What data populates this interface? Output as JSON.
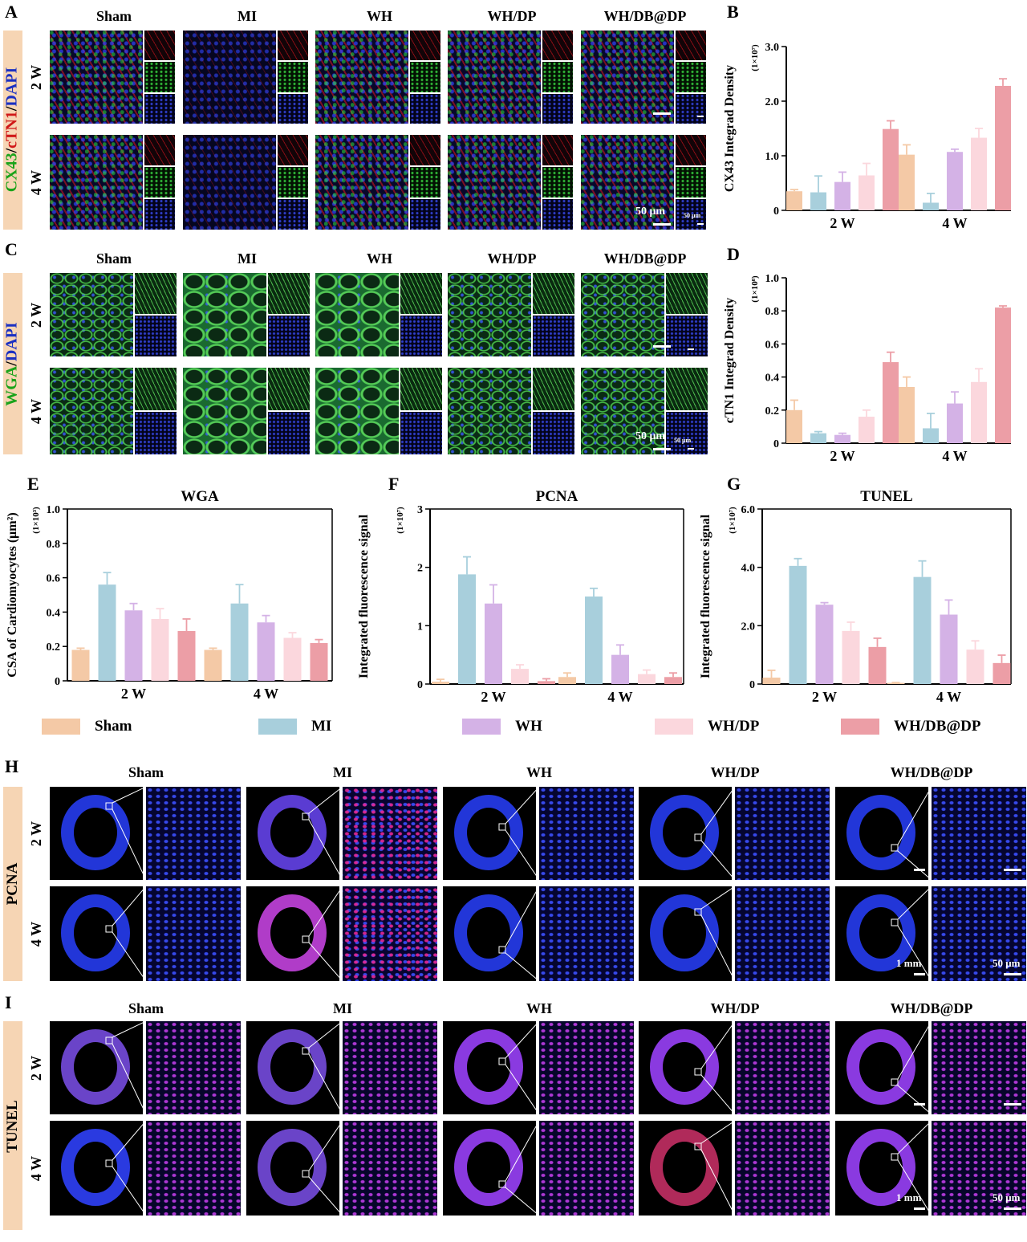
{
  "panel_letters": [
    "A",
    "B",
    "C",
    "D",
    "E",
    "F",
    "G",
    "H",
    "I"
  ],
  "groups": [
    "Sham",
    "MI",
    "WH",
    "WH/DP",
    "WH/DB@DP"
  ],
  "weeks": [
    "2 W",
    "4 W"
  ],
  "colors": {
    "Sham": "#f4c9a6",
    "MI": "#a8cfdc",
    "WH": "#d4b2e6",
    "WH/DP": "#fbd7dd",
    "WH/DB@DP": "#ec9ea6",
    "band": "#f6d5b4"
  },
  "panelA": {
    "stain_parts": [
      {
        "text": "CX43",
        "color": "#1aa31a"
      },
      {
        "text": "/",
        "color": "#000000"
      },
      {
        "text": "cTN1",
        "color": "#d01818"
      },
      {
        "text": "/",
        "color": "#000000"
      },
      {
        "text": "DAPI",
        "color": "#1a2fc2"
      }
    ],
    "scale_main": "50 μm",
    "scale_inset": "50 μm"
  },
  "panelC": {
    "stain_parts": [
      {
        "text": "WGA",
        "color": "#1aa31a"
      },
      {
        "text": "/",
        "color": "#000000"
      },
      {
        "text": "DAPI",
        "color": "#1a2fc2"
      }
    ],
    "scale_main": "50 μm",
    "scale_inset": "50 μm"
  },
  "panelH": {
    "stain": "PCNA",
    "scale_main": "1 mm",
    "scale_inset": "50 μm"
  },
  "panelI": {
    "stain": "TUNEL",
    "scale_main": "1 mm",
    "scale_inset": "50 μm"
  },
  "legend": [
    "Sham",
    "MI",
    "WH",
    "WH/DP",
    "WH/DB@DP"
  ],
  "chart_data": [
    {
      "panel": "B",
      "type": "bar",
      "title": "",
      "ylabel": "CX43 Integrad Density",
      "yunit": "(1×10⁷)",
      "categories": [
        "2 W",
        "4 W"
      ],
      "ylim": [
        0,
        3.0
      ],
      "yticks": [
        "0",
        "1.0",
        "2.0",
        "3.0"
      ],
      "ytick_values": [
        0,
        1,
        2,
        3
      ],
      "series": [
        {
          "name": "Sham",
          "values": [
            0.35,
            1.02
          ],
          "err": [
            0.03,
            0.18
          ]
        },
        {
          "name": "MI",
          "values": [
            0.33,
            0.14
          ],
          "err": [
            0.3,
            0.17
          ]
        },
        {
          "name": "WH",
          "values": [
            0.52,
            1.07
          ],
          "err": [
            0.18,
            0.05
          ]
        },
        {
          "name": "WH/DP",
          "values": [
            0.64,
            1.33
          ],
          "err": [
            0.22,
            0.17
          ]
        },
        {
          "name": "WH/DB@DP",
          "values": [
            1.49,
            2.28
          ],
          "err": [
            0.15,
            0.13
          ]
        }
      ]
    },
    {
      "panel": "D",
      "type": "bar",
      "title": "",
      "ylabel": "cTN1 Integrad Density",
      "yunit": "(1×10⁸)",
      "categories": [
        "2 W",
        "4 W"
      ],
      "ylim": [
        0,
        1.0
      ],
      "yticks": [
        "0",
        "0.2",
        "0.4",
        "0.6",
        "0.8",
        "1.0"
      ],
      "ytick_values": [
        0,
        0.2,
        0.4,
        0.6,
        0.8,
        1.0
      ],
      "series": [
        {
          "name": "Sham",
          "values": [
            0.2,
            0.34
          ],
          "err": [
            0.06,
            0.06
          ]
        },
        {
          "name": "MI",
          "values": [
            0.06,
            0.09
          ],
          "err": [
            0.01,
            0.09
          ]
        },
        {
          "name": "WH",
          "values": [
            0.05,
            0.24
          ],
          "err": [
            0.01,
            0.07
          ]
        },
        {
          "name": "WH/DP",
          "values": [
            0.16,
            0.37
          ],
          "err": [
            0.04,
            0.08
          ]
        },
        {
          "name": "WH/DB@DP",
          "values": [
            0.49,
            0.82
          ],
          "err": [
            0.06,
            0.01
          ]
        }
      ]
    },
    {
      "panel": "E",
      "type": "bar",
      "title": "WGA",
      "ylabel": "CSA of Cardiomyocytes (μm²)",
      "yunit": "(1×10³)",
      "categories": [
        "2 W",
        "4 W"
      ],
      "ylim": [
        0,
        1.0
      ],
      "yticks": [
        "0",
        "0.2",
        "0.4",
        "0.6",
        "0.8",
        "1.0"
      ],
      "ytick_values": [
        0,
        0.2,
        0.4,
        0.6,
        0.8,
        1.0
      ],
      "series": [
        {
          "name": "Sham",
          "values": [
            0.18,
            0.18
          ],
          "err": [
            0.01,
            0.01
          ]
        },
        {
          "name": "MI",
          "values": [
            0.56,
            0.45
          ],
          "err": [
            0.07,
            0.11
          ]
        },
        {
          "name": "WH",
          "values": [
            0.41,
            0.34
          ],
          "err": [
            0.04,
            0.04
          ]
        },
        {
          "name": "WH/DP",
          "values": [
            0.36,
            0.25
          ],
          "err": [
            0.06,
            0.03
          ]
        },
        {
          "name": "WH/DB@DP",
          "values": [
            0.29,
            0.22
          ],
          "err": [
            0.07,
            0.02
          ]
        }
      ]
    },
    {
      "panel": "F",
      "type": "bar",
      "title": "PCNA",
      "ylabel": "Integrated fluorescence signal",
      "yunit": "(1×10⁷)",
      "categories": [
        "2 W",
        "4 W"
      ],
      "ylim": [
        0,
        3
      ],
      "yticks": [
        "0",
        "1",
        "2",
        "3"
      ],
      "ytick_values": [
        0,
        1,
        2,
        3
      ],
      "series": [
        {
          "name": "Sham",
          "values": [
            0.04,
            0.12
          ],
          "err": [
            0.04,
            0.07
          ]
        },
        {
          "name": "MI",
          "values": [
            1.88,
            1.5
          ],
          "err": [
            0.3,
            0.14
          ]
        },
        {
          "name": "WH",
          "values": [
            1.38,
            0.5
          ],
          "err": [
            0.32,
            0.17
          ]
        },
        {
          "name": "WH/DP",
          "values": [
            0.26,
            0.17
          ],
          "err": [
            0.07,
            0.07
          ]
        },
        {
          "name": "WH/DB@DP",
          "values": [
            0.05,
            0.12
          ],
          "err": [
            0.04,
            0.07
          ]
        }
      ]
    },
    {
      "panel": "G",
      "type": "bar",
      "title": "TUNEL",
      "ylabel": "Integrated fluorescence signal",
      "yunit": "(1×10⁷)",
      "categories": [
        "2 W",
        "4 W"
      ],
      "ylim": [
        0,
        6.0
      ],
      "yticks": [
        "0",
        "2.0",
        "4.0",
        "6.0"
      ],
      "ytick_values": [
        0,
        2,
        4,
        6
      ],
      "series": [
        {
          "name": "Sham",
          "values": [
            0.22,
            0.04
          ],
          "err": [
            0.25,
            0.01
          ]
        },
        {
          "name": "MI",
          "values": [
            4.05,
            3.67
          ],
          "err": [
            0.25,
            0.55
          ]
        },
        {
          "name": "WH",
          "values": [
            2.72,
            2.38
          ],
          "err": [
            0.07,
            0.5
          ]
        },
        {
          "name": "WH/DP",
          "values": [
            1.82,
            1.18
          ],
          "err": [
            0.3,
            0.3
          ]
        },
        {
          "name": "WH/DB@DP",
          "values": [
            1.27,
            0.72
          ],
          "err": [
            0.3,
            0.27
          ]
        }
      ]
    }
  ]
}
